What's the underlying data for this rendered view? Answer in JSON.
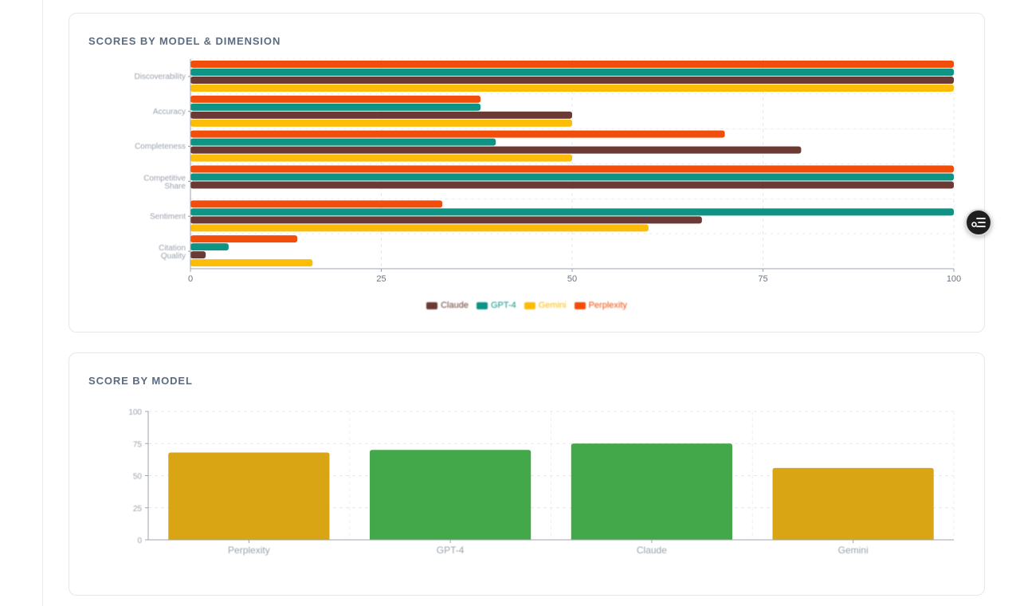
{
  "charts": {
    "dimension_chart": {
      "title": "SCORES BY MODEL & DIMENSION"
    },
    "model_chart": {
      "title": "SCORE BY MODEL"
    }
  },
  "colors": {
    "Claude": "#6b3a34",
    "GPT-4": "#0e9384",
    "Gemini": "#fbbd08",
    "Perplexity": "#f04e0a",
    "bar_gold": "#d9a514",
    "bar_green": "#43a84a"
  },
  "chart_data": [
    {
      "type": "bar",
      "orientation": "horizontal",
      "title": "SCORES BY MODEL & DIMENSION",
      "categories": [
        "Discoverability",
        "Accuracy",
        "Completeness",
        "Competitive Share",
        "Sentiment",
        "Citation Quality"
      ],
      "series": [
        {
          "name": "Perplexity",
          "values": [
            100,
            38,
            70,
            100,
            33,
            14
          ]
        },
        {
          "name": "GPT-4",
          "values": [
            100,
            38,
            40,
            100,
            100,
            5
          ]
        },
        {
          "name": "Claude",
          "values": [
            100,
            50,
            80,
            100,
            67,
            2
          ]
        },
        {
          "name": "Gemini",
          "values": [
            100,
            50,
            50,
            0,
            60,
            16
          ]
        }
      ],
      "xlim": [
        0,
        100
      ],
      "xticks": [
        0,
        25,
        50,
        75,
        100
      ],
      "legend": [
        "Claude",
        "GPT-4",
        "Gemini",
        "Perplexity"
      ],
      "legend_position": "bottom-center",
      "grid": true
    },
    {
      "type": "bar",
      "orientation": "vertical",
      "title": "SCORE BY MODEL",
      "categories": [
        "Perplexity",
        "GPT-4",
        "Claude",
        "Gemini"
      ],
      "values": [
        68,
        70,
        75,
        56
      ],
      "ylim": [
        0,
        100
      ],
      "yticks": [
        0,
        25,
        50,
        75,
        100
      ],
      "grid": true
    }
  ]
}
